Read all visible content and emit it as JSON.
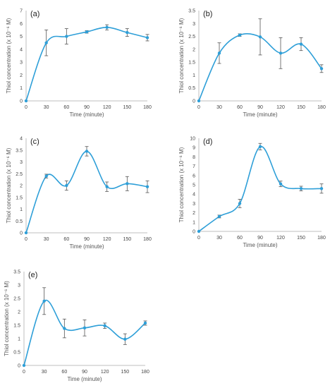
{
  "chart_data": [
    {
      "panel_label": "(a)",
      "type": "line",
      "xlabel": "Time (minute)",
      "ylabel": "Thiol concentration (x 10⁻⁶ M)",
      "x": [
        0,
        30,
        60,
        90,
        120,
        150,
        180
      ],
      "x_ticks": [
        "0",
        "30",
        "60",
        "90",
        "120",
        "150",
        "180"
      ],
      "ylim": [
        0,
        7
      ],
      "y_ticks": [
        "0",
        "1",
        "2",
        "3",
        "4",
        "5",
        "6",
        "7"
      ],
      "series": [
        {
          "values": [
            0,
            4.5,
            5.0,
            5.35,
            5.7,
            5.3,
            4.9
          ],
          "error": [
            0,
            1.0,
            0.6,
            0.1,
            0.2,
            0.3,
            0.25
          ]
        }
      ]
    },
    {
      "panel_label": "(b)",
      "type": "line",
      "xlabel": "Time (minute)",
      "ylabel": "Thiol concentration (x 10⁻⁶ M)",
      "x": [
        0,
        30,
        60,
        90,
        120,
        150,
        180
      ],
      "x_ticks": [
        "0",
        "30",
        "60",
        "90",
        "120",
        "150",
        "180"
      ],
      "ylim": [
        0,
        3.5
      ],
      "y_ticks": [
        "0",
        "0.5",
        "1",
        "1.5",
        "2",
        "2.5",
        "3",
        "3.5"
      ],
      "series": [
        {
          "values": [
            0,
            1.85,
            2.55,
            2.48,
            1.85,
            2.2,
            1.25
          ],
          "error": [
            0,
            0.4,
            0.05,
            0.7,
            0.6,
            0.25,
            0.15
          ]
        }
      ]
    },
    {
      "panel_label": "(c)",
      "type": "line",
      "xlabel": "Time (minute)",
      "ylabel": "Thiol concentration (x 10⁻⁶ M)",
      "x": [
        0,
        30,
        60,
        90,
        120,
        150,
        180
      ],
      "x_ticks": [
        "0",
        "30",
        "60",
        "90",
        "120",
        "150",
        "180"
      ],
      "ylim": [
        0,
        4
      ],
      "y_ticks": [
        "0",
        "0.5",
        "1",
        "1.5",
        "2",
        "2.5",
        "3",
        "3.5",
        "4"
      ],
      "series": [
        {
          "values": [
            0,
            2.4,
            2.0,
            3.45,
            1.95,
            2.08,
            1.95
          ],
          "error": [
            0,
            0.08,
            0.2,
            0.2,
            0.2,
            0.3,
            0.25
          ]
        }
      ]
    },
    {
      "panel_label": "(d)",
      "type": "line",
      "xlabel": "Time (minute)",
      "ylabel": "Thiol concentration (x 10⁻⁶ M)",
      "x": [
        0,
        30,
        60,
        90,
        120,
        150,
        180
      ],
      "x_ticks": [
        "0",
        "30",
        "60",
        "90",
        "120",
        "150",
        "180"
      ],
      "ylim": [
        0,
        10
      ],
      "y_ticks": [
        "0",
        "1",
        "2",
        "3",
        "4",
        "5",
        "6",
        "7",
        "8",
        "9",
        "10"
      ],
      "series": [
        {
          "values": [
            0,
            1.6,
            3.0,
            9.1,
            5.1,
            4.6,
            4.6
          ],
          "error": [
            0,
            0.15,
            0.45,
            0.35,
            0.3,
            0.25,
            0.5
          ]
        }
      ]
    },
    {
      "panel_label": "(e)",
      "type": "line",
      "xlabel": "Time (minute)",
      "ylabel": "Thiol concentration (x 10⁻⁶ M)",
      "x": [
        0,
        30,
        60,
        90,
        120,
        150,
        180
      ],
      "x_ticks": [
        "0",
        "30",
        "60",
        "90",
        "120",
        "150",
        "180"
      ],
      "ylim": [
        0,
        3.5
      ],
      "y_ticks": [
        "0",
        "0.5",
        "1",
        "1.5",
        "2",
        "2.5",
        "3",
        "3.5"
      ],
      "series": [
        {
          "values": [
            0,
            2.4,
            1.38,
            1.4,
            1.48,
            0.98,
            1.58
          ],
          "error": [
            0,
            0.5,
            0.35,
            0.3,
            0.1,
            0.2,
            0.08
          ]
        }
      ]
    }
  ],
  "style": {
    "line_color": "#2e9fd8",
    "marker_color": "#2e9fd8",
    "error_bar_color": "#555555",
    "axis_color": "#bfbfbf"
  }
}
